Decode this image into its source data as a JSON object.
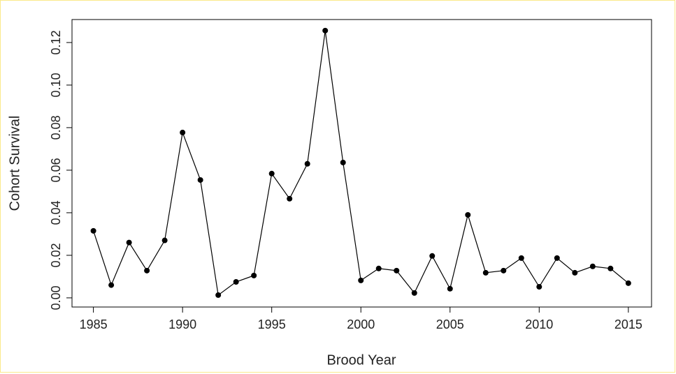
{
  "chart_data": {
    "type": "line",
    "xlabel": "Brood Year",
    "ylabel": "Cohort Survival",
    "x": [
      1985,
      1986,
      1987,
      1988,
      1989,
      1990,
      1991,
      1992,
      1993,
      1994,
      1995,
      1996,
      1997,
      1998,
      1999,
      2000,
      2001,
      2002,
      2003,
      2004,
      2005,
      2006,
      2007,
      2008,
      2009,
      2010,
      2011,
      2012,
      2013,
      2014,
      2015
    ],
    "series": [
      {
        "color": "#000000",
        "values": [
          0.0315,
          0.006,
          0.026,
          0.0128,
          0.027,
          0.0777,
          0.0554,
          0.0013,
          0.0075,
          0.0105,
          0.0584,
          0.0466,
          0.063,
          0.1256,
          0.0636,
          0.0082,
          0.0138,
          0.0128,
          0.0023,
          0.0197,
          0.0043,
          0.039,
          0.0118,
          0.0128,
          0.0187,
          0.0052,
          0.0187,
          0.0118,
          0.0148,
          0.0138,
          0.0069
        ]
      }
    ],
    "xlim": [
      1983.8,
      2016.3
    ],
    "ylim": [
      -0.0043,
      0.1308
    ],
    "xticks": [
      1985,
      1990,
      1995,
      2000,
      2005,
      2010,
      2015
    ],
    "yticks": [
      {
        "value": 0,
        "label": "0.00"
      },
      {
        "value": 0.02,
        "label": "0.02"
      },
      {
        "value": 0.04,
        "label": "0.04"
      },
      {
        "value": 0.06,
        "label": "0.06"
      },
      {
        "value": 0.08,
        "label": "0.08"
      },
      {
        "value": 0.1,
        "label": "0.10"
      },
      {
        "value": 0.12,
        "label": "0.12"
      }
    ]
  }
}
